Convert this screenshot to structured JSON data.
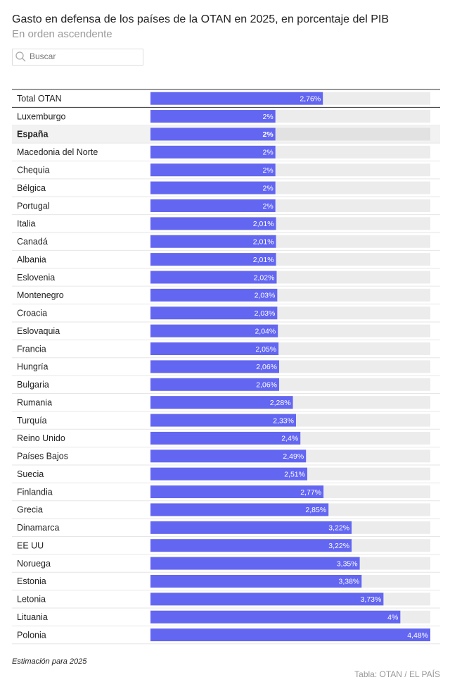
{
  "chart_data": {
    "type": "bar",
    "title": "Gasto en defensa de los países de la OTAN en 2025, en porcentaje del PIB",
    "subtitle": "En orden ascendente",
    "search_placeholder": "Buscar",
    "categories": [
      "Total OTAN",
      "Luxemburgo",
      "España",
      "Macedonia del Norte",
      "Chequia",
      "Bélgica",
      "Portugal",
      "Italia",
      "Canadá",
      "Albania",
      "Eslovenia",
      "Montenegro",
      "Croacia",
      "Eslovaquia",
      "Francia",
      "Hungría",
      "Bulgaria",
      "Rumania",
      "Turquía",
      "Reino Unido",
      "Países Bajos",
      "Suecia",
      "Finlandia",
      "Grecia",
      "Dinamarca",
      "EE UU",
      "Noruega",
      "Estonia",
      "Letonia",
      "Lituania",
      "Polonia"
    ],
    "values": [
      2.76,
      2,
      2,
      2,
      2,
      2,
      2,
      2.01,
      2.01,
      2.01,
      2.02,
      2.03,
      2.03,
      2.04,
      2.05,
      2.06,
      2.06,
      2.28,
      2.33,
      2.4,
      2.49,
      2.51,
      2.77,
      2.85,
      3.22,
      3.22,
      3.35,
      3.38,
      3.73,
      4,
      4.48
    ],
    "value_labels": [
      "2,76%",
      "2%",
      "2%",
      "2%",
      "2%",
      "2%",
      "2%",
      "2,01%",
      "2,01%",
      "2,01%",
      "2,02%",
      "2,03%",
      "2,03%",
      "2,04%",
      "2,05%",
      "2,06%",
      "2,06%",
      "2,28%",
      "2,33%",
      "2,4%",
      "2,49%",
      "2,51%",
      "2,77%",
      "2,85%",
      "3,22%",
      "3,22%",
      "3,35%",
      "3,38%",
      "3,73%",
      "4%",
      "4,48%"
    ],
    "highlight": "España",
    "color": "#6366f1",
    "xlim": [
      0,
      4.48
    ],
    "note": "Estimación para 2025",
    "source": "Tabla: OTAN / EL PAÍS"
  }
}
